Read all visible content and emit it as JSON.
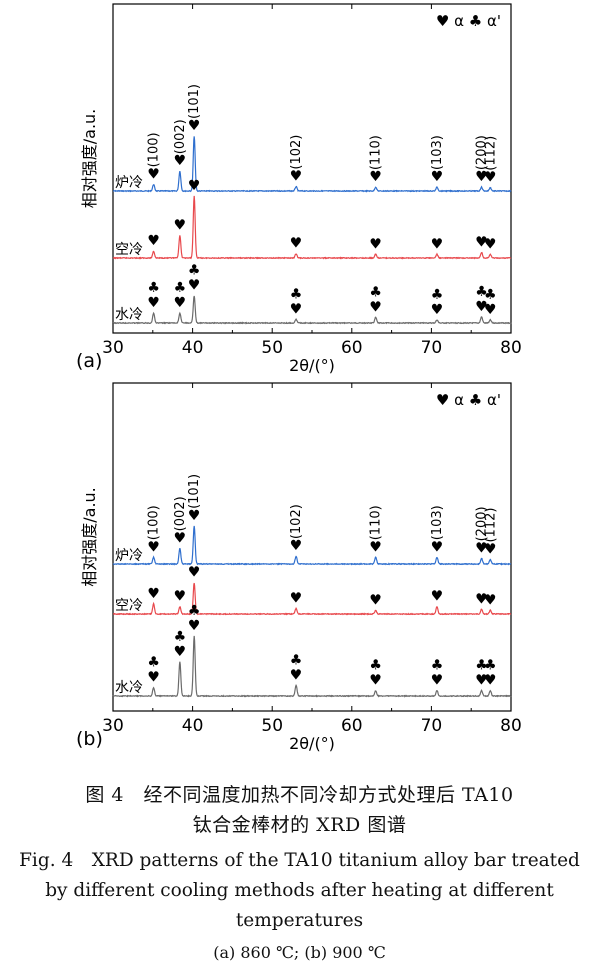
{
  "chart_data": [
    {
      "type": "line",
      "panel_label": "(a)",
      "xlabel": "2θ/(°)",
      "ylabel": "相对强度/a.u.",
      "xlim": [
        30,
        80
      ],
      "xticks": [
        "30",
        "40",
        "50",
        "60",
        "70",
        "80"
      ],
      "legend": [
        "♥ α",
        "♣ α'"
      ],
      "legend_position": "top-right",
      "grid": false,
      "series": [
        {
          "name": "炉冷",
          "color": "#2f6fce",
          "peaks": [
            {
              "x": 35.1,
              "h": 0.12
            },
            {
              "x": 38.4,
              "h": 0.36
            },
            {
              "x": 40.2,
              "h": 1.0
            },
            {
              "x": 53.0,
              "h": 0.08
            },
            {
              "x": 63.0,
              "h": 0.07
            },
            {
              "x": 70.7,
              "h": 0.07
            },
            {
              "x": 76.3,
              "h": 0.07
            },
            {
              "x": 77.4,
              "h": 0.06
            }
          ],
          "annotations": [
            {
              "x": 35.1,
              "symbols": [
                "♥"
              ],
              "hkl": "(100)"
            },
            {
              "x": 38.4,
              "symbols": [
                "♥"
              ],
              "hkl": "(002)"
            },
            {
              "x": 40.2,
              "symbols": [
                "♥"
              ],
              "hkl": "(101)"
            },
            {
              "x": 53.0,
              "symbols": [
                "♥"
              ],
              "hkl": "(102)"
            },
            {
              "x": 63.0,
              "symbols": [
                "♥"
              ],
              "hkl": "(110)"
            },
            {
              "x": 70.7,
              "symbols": [
                "♥"
              ],
              "hkl": "(103)"
            },
            {
              "x": 76.3,
              "symbols": [
                "♥"
              ],
              "hkl": "(200)"
            },
            {
              "x": 77.4,
              "symbols": [
                "♥"
              ],
              "hkl": "(112)"
            }
          ]
        },
        {
          "name": "空冷",
          "color": "#e8494d",
          "peaks": [
            {
              "x": 35.1,
              "h": 0.11
            },
            {
              "x": 38.4,
              "h": 0.36
            },
            {
              "x": 40.2,
              "h": 1.0
            },
            {
              "x": 53.0,
              "h": 0.07
            },
            {
              "x": 63.0,
              "h": 0.06
            },
            {
              "x": 70.7,
              "h": 0.06
            },
            {
              "x": 76.3,
              "h": 0.09
            },
            {
              "x": 77.4,
              "h": 0.06
            }
          ],
          "annotations": [
            {
              "x": 35.1,
              "symbols": [
                "♥"
              ]
            },
            {
              "x": 38.4,
              "symbols": [
                "♥"
              ]
            },
            {
              "x": 40.2,
              "symbols": [
                "♥"
              ]
            },
            {
              "x": 53.0,
              "symbols": [
                "♥"
              ]
            },
            {
              "x": 63.0,
              "symbols": [
                "♥"
              ]
            },
            {
              "x": 70.7,
              "symbols": [
                "♥"
              ]
            },
            {
              "x": 76.3,
              "symbols": [
                "♥"
              ]
            },
            {
              "x": 77.4,
              "symbols": [
                "♥"
              ]
            }
          ]
        },
        {
          "name": "水冷",
          "color": "#6b6b6b",
          "peaks": [
            {
              "x": 35.1,
              "h": 0.16
            },
            {
              "x": 38.4,
              "h": 0.16
            },
            {
              "x": 40.2,
              "h": 0.44
            },
            {
              "x": 53.0,
              "h": 0.06
            },
            {
              "x": 63.0,
              "h": 0.09
            },
            {
              "x": 70.7,
              "h": 0.05
            },
            {
              "x": 76.3,
              "h": 0.1
            },
            {
              "x": 77.4,
              "h": 0.05
            }
          ],
          "annotations": [
            {
              "x": 35.1,
              "symbols": [
                "♣",
                "♥"
              ]
            },
            {
              "x": 38.4,
              "symbols": [
                "♣",
                "♥"
              ]
            },
            {
              "x": 40.2,
              "symbols": [
                "♣",
                "♥"
              ]
            },
            {
              "x": 53.0,
              "symbols": [
                "♣",
                "♥"
              ]
            },
            {
              "x": 63.0,
              "symbols": [
                "♣",
                "♥"
              ]
            },
            {
              "x": 70.7,
              "symbols": [
                "♣",
                "♥"
              ]
            },
            {
              "x": 76.3,
              "symbols": [
                "♣",
                "♥"
              ]
            },
            {
              "x": 77.4,
              "symbols": [
                "♣",
                "♥"
              ]
            }
          ]
        }
      ]
    },
    {
      "type": "line",
      "panel_label": "(b)",
      "xlabel": "2θ/(°)",
      "ylabel": "相对强度/a.u.",
      "xlim": [
        30,
        80
      ],
      "xticks": [
        "30",
        "40",
        "50",
        "60",
        "70",
        "80"
      ],
      "legend": [
        "♥ α",
        "♣ α'"
      ],
      "legend_position": "top-right",
      "grid": false,
      "series": [
        {
          "name": "炉冷",
          "color": "#2f6fce",
          "peaks": [
            {
              "x": 35.1,
              "h": 0.06
            },
            {
              "x": 38.4,
              "h": 0.14
            },
            {
              "x": 40.2,
              "h": 0.34
            },
            {
              "x": 53.0,
              "h": 0.07
            },
            {
              "x": 63.0,
              "h": 0.06
            },
            {
              "x": 70.7,
              "h": 0.06
            },
            {
              "x": 76.3,
              "h": 0.05
            },
            {
              "x": 77.4,
              "h": 0.04
            }
          ],
          "annotations": [
            {
              "x": 35.1,
              "symbols": [
                "♥"
              ],
              "hkl": "(100)"
            },
            {
              "x": 38.4,
              "symbols": [
                "♥"
              ],
              "hkl": "(002)"
            },
            {
              "x": 40.2,
              "symbols": [
                "♥"
              ],
              "hkl": "(101)"
            },
            {
              "x": 53.0,
              "symbols": [
                "♥"
              ],
              "hkl": "(102)"
            },
            {
              "x": 63.0,
              "symbols": [
                "♥"
              ],
              "hkl": "(110)"
            },
            {
              "x": 70.7,
              "symbols": [
                "♥"
              ],
              "hkl": "(103)"
            },
            {
              "x": 76.3,
              "symbols": [
                "♥"
              ],
              "hkl": "(200)"
            },
            {
              "x": 77.4,
              "symbols": [
                "♥"
              ],
              "hkl": "(112)"
            }
          ]
        },
        {
          "name": "空冷",
          "color": "#e8494d",
          "peaks": [
            {
              "x": 35.1,
              "h": 0.11
            },
            {
              "x": 38.4,
              "h": 0.08
            },
            {
              "x": 40.2,
              "h": 0.34
            },
            {
              "x": 53.0,
              "h": 0.06
            },
            {
              "x": 63.0,
              "h": 0.04
            },
            {
              "x": 70.7,
              "h": 0.08
            },
            {
              "x": 76.3,
              "h": 0.05
            },
            {
              "x": 77.4,
              "h": 0.04
            }
          ],
          "annotations": [
            {
              "x": 35.1,
              "symbols": [
                "♥"
              ]
            },
            {
              "x": 38.4,
              "symbols": [
                "♥"
              ]
            },
            {
              "x": 40.2,
              "symbols": [
                "♥"
              ]
            },
            {
              "x": 53.0,
              "symbols": [
                "♥"
              ]
            },
            {
              "x": 63.0,
              "symbols": [
                "♥"
              ]
            },
            {
              "x": 70.7,
              "symbols": [
                "♥"
              ]
            },
            {
              "x": 76.3,
              "symbols": [
                "♥"
              ]
            },
            {
              "x": 77.4,
              "symbols": [
                "♥"
              ]
            }
          ]
        },
        {
          "name": "水冷",
          "color": "#6b6b6b",
          "peaks": [
            {
              "x": 35.1,
              "h": 0.08
            },
            {
              "x": 38.4,
              "h": 0.32
            },
            {
              "x": 40.2,
              "h": 0.56
            },
            {
              "x": 53.0,
              "h": 0.1
            },
            {
              "x": 63.0,
              "h": 0.05
            },
            {
              "x": 70.7,
              "h": 0.05
            },
            {
              "x": 76.3,
              "h": 0.05
            },
            {
              "x": 77.4,
              "h": 0.05
            }
          ],
          "annotations": [
            {
              "x": 35.1,
              "symbols": [
                "♣",
                "♥"
              ]
            },
            {
              "x": 38.4,
              "symbols": [
                "♣",
                "♥"
              ]
            },
            {
              "x": 40.2,
              "symbols": [
                "♣",
                "♥"
              ]
            },
            {
              "x": 53.0,
              "symbols": [
                "♣",
                "♥"
              ]
            },
            {
              "x": 63.0,
              "symbols": [
                "♣",
                "♥"
              ]
            },
            {
              "x": 70.7,
              "symbols": [
                "♣",
                "♥"
              ]
            },
            {
              "x": 76.3,
              "symbols": [
                "♣",
                "♥"
              ]
            },
            {
              "x": 77.4,
              "symbols": [
                "♣",
                "♥"
              ]
            }
          ]
        }
      ]
    }
  ],
  "caption": {
    "zh_line1": "图 4　经不同温度加热不同冷却方式处理后 TA10",
    "zh_line2": "钛合金棒材的 XRD 图谱",
    "en_line1": "Fig. 4　XRD patterns of the TA10 titanium alloy bar treated",
    "en_line2": "by different cooling methods after heating at different",
    "en_line3": "temperatures",
    "sub": "(a) 860 ℃; (b) 900 ℃"
  }
}
